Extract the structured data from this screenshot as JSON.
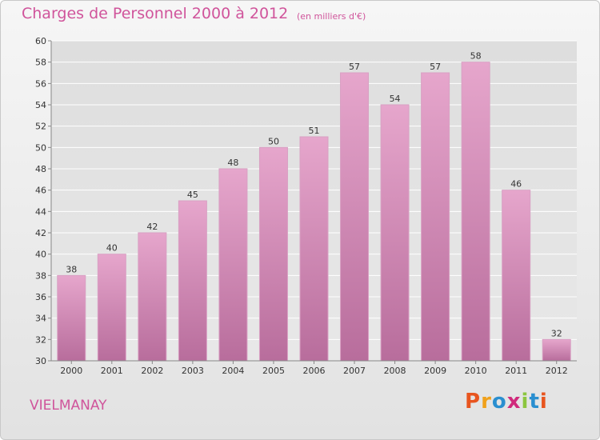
{
  "header": {
    "title": "Charges de Personnel 2000 à 2012",
    "subtitle": "(en milliers d'€)"
  },
  "footer": {
    "commune": "VIELMANAY",
    "logo_text": "Proxiti",
    "logo_colors": [
      "#e8551f",
      "#f0a11b",
      "#2a8fd0",
      "#d02a7c",
      "#8cc63f",
      "#2a8fd0",
      "#e8551f"
    ]
  },
  "colors": {
    "bar_top": "#e6a6cc",
    "bar_bottom": "#b86d9c",
    "title": "#d0549b",
    "grid": "#ffffff"
  },
  "chart_data": {
    "type": "bar",
    "title": "Charges de Personnel 2000 à 2012",
    "subtitle": "(en milliers d'€)",
    "xlabel": "",
    "ylabel": "",
    "categories": [
      "2000",
      "2001",
      "2002",
      "2003",
      "2004",
      "2005",
      "2006",
      "2007",
      "2008",
      "2009",
      "2010",
      "2011",
      "2012"
    ],
    "values": [
      38,
      40,
      42,
      45,
      48,
      50,
      51,
      57,
      54,
      57,
      58,
      46,
      32
    ],
    "ylim": [
      30,
      60
    ],
    "yticks": [
      30,
      32,
      34,
      36,
      38,
      40,
      42,
      44,
      46,
      48,
      50,
      52,
      54,
      56,
      58,
      60
    ],
    "grid": true,
    "data_labels": true
  }
}
